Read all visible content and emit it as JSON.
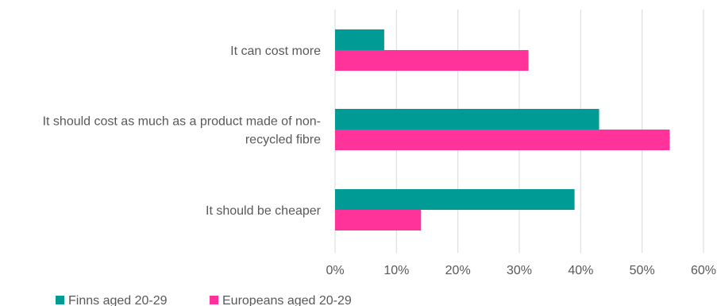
{
  "chart_data": {
    "type": "bar",
    "orientation": "horizontal",
    "categories": [
      [
        "It can cost more"
      ],
      [
        "It should cost as much as a product made of non-",
        "recycled fibre"
      ],
      [
        "It should be cheaper"
      ]
    ],
    "series": [
      {
        "name": "Finns aged 20-29",
        "color": "#009b94",
        "values": [
          8,
          43,
          39
        ]
      },
      {
        "name": "Europeans aged 20-29",
        "color": "#ff3399",
        "values": [
          31.5,
          54.5,
          14
        ]
      }
    ],
    "xlim": [
      0,
      60
    ],
    "xticks": [
      0,
      10,
      20,
      30,
      40,
      50,
      60
    ],
    "tick_suffix": "%",
    "grid": true,
    "legend_position": "bottom-left"
  }
}
